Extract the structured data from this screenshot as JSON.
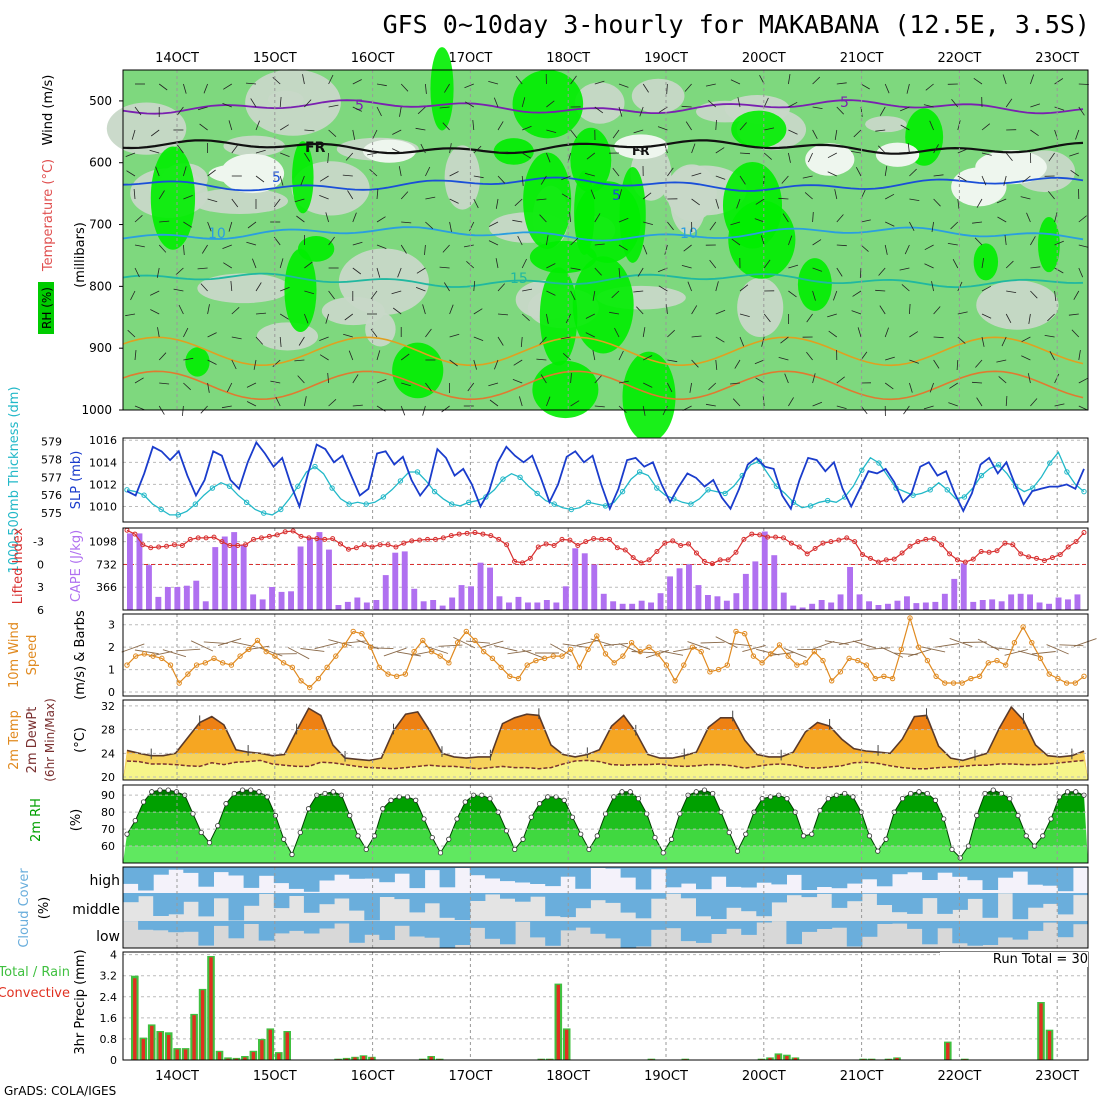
{
  "title": "GFS 0~10day 3-hourly for MAKABANA (12.5E, 3.5S)",
  "footer": "GrADS: COLA/IGES",
  "run_total": "Run Total = 30",
  "x_axis_labels": [
    "14OCT",
    "15OCT",
    "16OCT",
    "17OCT",
    "18OCT",
    "19OCT",
    "20OCT",
    "21OCT",
    "22OCT",
    "23OCT"
  ],
  "colors": {
    "rh_light": "#c8d8c8",
    "rh_mid": "#7ed87e",
    "rh_high": "#00ee00",
    "blue_slp": "#1a3ccc",
    "cyan_thk": "#22b8c8",
    "purple_cape": "#b070f0",
    "red_li": "#d83030",
    "orange_wind": "#e08a20",
    "temp_fill": "#f5a623",
    "dew_fill": "#f6f58a",
    "rh_green": "#00a000",
    "cloud_blue": "#6aaedc",
    "precip_green": "#40c040",
    "precip_red": "#e03020"
  },
  "chart_data": [
    {
      "panel": "upper-air",
      "type": "heatmap",
      "ylabel_parts": [
        "RH (%)",
        "Temperature (°C)",
        "Wind (m/s)"
      ],
      "ylabel_units": "(millibars)",
      "y_ticks": [
        500,
        600,
        700,
        800,
        900,
        1000
      ],
      "ylim": [
        450,
        1000
      ],
      "contour_labels": [
        "5",
        "FR",
        "5",
        "10",
        "15"
      ],
      "isotherms": [
        {
          "label": "-5",
          "pressure": 510
        },
        {
          "label": "FR",
          "pressure": 575
        },
        {
          "label": "5",
          "pressure": 635
        },
        {
          "label": "10",
          "pressure": 715
        },
        {
          "label": "15",
          "pressure": 790
        }
      ]
    },
    {
      "panel": "slp-thickness",
      "type": "line",
      "ylabel_left": "1000-500mb Thickness (dm)",
      "ylabel_right": "SLP (mb)",
      "left_ticks": [
        575,
        576,
        577,
        578,
        579
      ],
      "right_ticks": [
        1010,
        1012,
        1014,
        1016
      ],
      "ylim_slp": [
        1008.6,
        1016.2
      ],
      "slp": [
        1011.4,
        1011,
        1013,
        1015.4,
        1015,
        1014.2,
        1015,
        1012.8,
        1011,
        1012.4,
        1015,
        1014.6,
        1012.4,
        1011.6,
        1014,
        1015.8,
        1014.8,
        1013.6,
        1014.4,
        1012,
        1010,
        1013,
        1015.6,
        1015.2,
        1014,
        1014.6,
        1012.8,
        1011,
        1011.6,
        1014.8,
        1015,
        1013.8,
        1014.5,
        1012.4,
        1011,
        1012,
        1015.2,
        1014.4,
        1012.8,
        1013.4,
        1012,
        1010,
        1011.4,
        1014,
        1015.4,
        1014.6,
        1014,
        1014.6,
        1012.6,
        1010.4,
        1012,
        1014.5,
        1015,
        1014,
        1014.6,
        1012,
        1009.8,
        1011.6,
        1014.2,
        1014.4,
        1013.6,
        1014,
        1012,
        1010.4,
        1011.8,
        1013,
        1012.6,
        1011.8,
        1012.4,
        1010.8,
        1009.8,
        1011.6,
        1013.8,
        1014.4,
        1013.6,
        1013.4,
        1011,
        1009.8,
        1012.4,
        1014.4,
        1014.2,
        1013.2,
        1014,
        1011.6,
        1010,
        1011.6,
        1013.2,
        1013,
        1013.4,
        1012.2,
        1010.4,
        1011.2,
        1013.6,
        1014,
        1012.8,
        1013.2,
        1011.2,
        1009.6,
        1011.2,
        1013.8,
        1014.4,
        1013,
        1014,
        1012,
        1010.2,
        1011.4,
        1011.6,
        1011.8,
        1011.8,
        1012,
        1011.6,
        1013.4
      ],
      "thickness": [
        576.3,
        576.2,
        576,
        575.5,
        575.2,
        574.9,
        574.9,
        575.1,
        575.5,
        576,
        576.4,
        576.7,
        576.5,
        576,
        575.6,
        575.2,
        575,
        574.9,
        575.2,
        575.8,
        576.5,
        577.3,
        577.6,
        577.2,
        576.4,
        575.8,
        575.5,
        575.6,
        575.5,
        575.6,
        575.9,
        576.3,
        576.8,
        577.3,
        577.3,
        576.8,
        576.2,
        575.8,
        575.5,
        575.4,
        575.6,
        575.7,
        575.9,
        576.3,
        576.9,
        577.2,
        577,
        576.5,
        576.1,
        575.7,
        575.5,
        575.3,
        575.2,
        575.3,
        575.6,
        575.5,
        575.4,
        575.6,
        576.2,
        576.9,
        577.3,
        577.1,
        576.4,
        576,
        575.8,
        575.6,
        575.5,
        575.8,
        576.3,
        576.2,
        576.1,
        576.5,
        577.1,
        577.7,
        577.9,
        577.2,
        576.5,
        576.1,
        575.6,
        575.3,
        575.4,
        575.6,
        575.7,
        575.6,
        575.9,
        576.5,
        577.4,
        578.1,
        577.8,
        577.1,
        576.4,
        576.2,
        576,
        576.1,
        576.3,
        576.7,
        576.3,
        575.8,
        575.9,
        576.4,
        577.1,
        577.5,
        577.7,
        577.2,
        576.5,
        576.2,
        576.4,
        577,
        577.8,
        578.4,
        577.3,
        576.6,
        576.2
      ]
    },
    {
      "panel": "lifted-cape",
      "type": "bar",
      "ylabel_left": "Lifted Index",
      "ylabel_right": "CAPE (J/kg)",
      "left_ticks": [
        -3,
        0,
        3,
        6
      ],
      "right_ticks": [
        366,
        732,
        1098
      ],
      "ylim_cape": [
        0,
        1220
      ],
      "cape": [
        1230,
        1230,
        720,
        210,
        370,
        370,
        390,
        470,
        140,
        1010,
        1180,
        1250,
        1040,
        250,
        170,
        370,
        290,
        300,
        1020,
        1160,
        1250,
        970,
        80,
        130,
        200,
        120,
        160,
        560,
        920,
        940,
        340,
        140,
        160,
        70,
        200,
        400,
        380,
        760,
        680,
        220,
        120,
        210,
        120,
        120,
        160,
        120,
        380,
        990,
        910,
        730,
        260,
        140,
        100,
        100,
        150,
        120,
        270,
        540,
        670,
        730,
        400,
        240,
        220,
        150,
        270,
        580,
        780,
        1260,
        880,
        280,
        70,
        40,
        100,
        160,
        120,
        250,
        690,
        250,
        140,
        80,
        100,
        150,
        220,
        110,
        120,
        130,
        260,
        500,
        750,
        130,
        160,
        170,
        140,
        250,
        260,
        250,
        120,
        100,
        200,
        170,
        250
      ],
      "lifted_index": [
        -4.5,
        -4,
        -2.6,
        -2.2,
        -2.3,
        -2.4,
        -2.6,
        -2.5,
        -3.3,
        -3.5,
        -3.5,
        -3.6,
        -3,
        -2.5,
        -2.5,
        -2.6,
        -3.3,
        -3.5,
        -3.7,
        -3.9,
        -4.3,
        -4.4,
        -3.7,
        -3.5,
        -3.4,
        -3.3,
        -3.4,
        -2.7,
        -2,
        -2.2,
        -2.6,
        -2.3,
        -2.6,
        -2.6,
        -2.3,
        -2.8,
        -3.1,
        -3.2,
        -3.3,
        -3.3,
        -3.5,
        -3.8,
        -4,
        -4.1,
        -4.2,
        -4,
        -3.8,
        -3.3,
        -2.6,
        -0.4,
        -0.2,
        -0.8,
        -2.3,
        -2.7,
        -2.5,
        -3.3,
        -3.2,
        -2.5,
        -3,
        -3.4,
        -3.3,
        -3.3,
        -2.2,
        -1.9,
        -0.9,
        -0.2,
        -0.6,
        -1.7,
        -2.8,
        -3.1,
        -2.5,
        -2.7,
        -1.5,
        -0.4,
        -0.1,
        -0.6,
        -0.6,
        -1.6,
        -3.3,
        -4,
        -3.9,
        -3.6,
        -3.6,
        -3.5,
        -2.8,
        -2.3,
        -1.4,
        -2.1,
        -2.8,
        -3,
        -3.2,
        -3.5,
        -3,
        -1.3,
        -0.8,
        -0.3,
        -0.6,
        -0.7,
        -1.5,
        -2.4,
        -3,
        -3.3,
        -3.4,
        -2.6,
        -1.4,
        -0.6,
        -0.3,
        -0.7,
        -1.7,
        -1.6,
        -1.8,
        -2.8,
        -2.6,
        -1.4,
        -1,
        -0.8,
        -0.5,
        -0.9,
        -1.3,
        -2.3,
        -3,
        -4.2
      ]
    },
    {
      "panel": "wind-10m",
      "type": "line",
      "ylabel": "10m Wind Speed (m/s) & Barbs",
      "y_ticks": [
        0,
        1,
        2,
        3
      ],
      "ylim": [
        0,
        3.3
      ],
      "values": [
        1.2,
        1.6,
        1.7,
        1.6,
        1.5,
        1.2,
        0.4,
        0.8,
        1.2,
        1.3,
        1.5,
        1.3,
        1.2,
        1.6,
        1.9,
        2.3,
        1.8,
        1.6,
        1.3,
        1.1,
        0.5,
        0.2,
        0.6,
        1.1,
        1.6,
        2.1,
        2.7,
        2.6,
        2,
        1.1,
        0.8,
        0.7,
        0.8,
        1.8,
        2.3,
        1.8,
        1.6,
        1.3,
        2.2,
        2.7,
        2.3,
        1.8,
        1.5,
        1.1,
        0.7,
        0.6,
        1.2,
        1.4,
        1.5,
        1.6,
        1.6,
        1.9,
        1.1,
        1.9,
        2.5,
        1.7,
        1.3,
        1.6,
        2.2,
        1.8,
        2,
        1.7,
        1.2,
        0.5,
        1.2,
        2,
        1.8,
        0.9,
        1,
        1.2,
        2.7,
        2.6,
        1.6,
        1.3,
        1.7,
        2.1,
        1.6,
        1.2,
        1.3,
        1.8,
        1.4,
        0.5,
        0.9,
        1.5,
        1.4,
        1.2,
        0.6,
        0.7,
        0.6,
        1.9,
        3.3,
        2,
        1.4,
        0.7,
        0.4,
        0.4,
        0.4,
        0.6,
        0.7,
        1.3,
        1.4,
        1.2,
        2.2,
        2.9,
        2.2,
        1.5,
        0.8,
        0.6,
        0.4,
        0.4,
        0.7
      ]
    },
    {
      "panel": "temperature",
      "type": "area",
      "ylabel": "2m Temp 2m DewPt (6hr Min/Max) (°C)",
      "ylabel_parts": [
        "2m Temp",
        "2m DewPt",
        "(6hr Min/Max)",
        "(°C)"
      ],
      "y_ticks": [
        20,
        24,
        28,
        32
      ],
      "ylim": [
        19.5,
        33
      ],
      "temp": [
        24.5,
        24,
        23.6,
        23.6,
        24,
        26.6,
        29.2,
        30.2,
        28.8,
        24.6,
        24.2,
        24,
        23.6,
        23.8,
        27.8,
        31.6,
        30.4,
        25.4,
        23.2,
        23,
        22.8,
        23.2,
        27.8,
        30.6,
        31,
        27.8,
        24,
        23.4,
        23.2,
        23.4,
        23.4,
        29,
        30,
        30.6,
        30.4,
        25.4,
        23.8,
        23.4,
        23.8,
        24.6,
        28.6,
        30.4,
        27.6,
        23.8,
        23.2,
        23.2,
        23.6,
        24.2,
        28.4,
        30,
        30,
        26.2,
        23.8,
        23.4,
        23.4,
        24.2,
        27.6,
        29.2,
        28.6,
        26.4,
        24.8,
        24.4,
        24.2,
        24,
        26.4,
        30.2,
        30.4,
        25.2,
        23.2,
        22.8,
        23.4,
        24,
        28.2,
        31.8,
        29.6,
        25.4,
        23.6,
        23.4,
        23.6,
        24.4
      ],
      "dewpoint": [
        22.7,
        22.6,
        22.2,
        22.2,
        22.1,
        21.9,
        21.8,
        22.4,
        22.1,
        22.5,
        22.6,
        22.8,
        22.2,
        22,
        21.8,
        21.8,
        22.5,
        22.4,
        22.1,
        21.8,
        21.6,
        21.5,
        21.4,
        21.6,
        21.8,
        22,
        21.8,
        21.8,
        21.6,
        21.4,
        21.6,
        21.8,
        21.6,
        21.6,
        21.4,
        21.6,
        22.2,
        22.7,
        22.8,
        22.6,
        22.1,
        22,
        22.1,
        22.1,
        22.2,
        21.9,
        21.8,
        21.9,
        22.1,
        22.1,
        21.9,
        21.5,
        21.8,
        22.1,
        22.2,
        22,
        21.6,
        21.5,
        21.7,
        21.9,
        22.4,
        22.5,
        22.3,
        21.9,
        21.6,
        21.4,
        21.4,
        21.6,
        21.7,
        21.8,
        22,
        22,
        22.2,
        22.2,
        22.1,
        22.1,
        22.2,
        22.4,
        22.6,
        22.8
      ]
    },
    {
      "panel": "relative-humidity",
      "type": "area",
      "ylabel": "2m RH (%)",
      "y_ticks": [
        60,
        70,
        80,
        90
      ],
      "ylim": [
        50,
        96
      ],
      "values": [
        67,
        75,
        86,
        92,
        93,
        93,
        92,
        90,
        79,
        68,
        62,
        72,
        85,
        91,
        93,
        93,
        92,
        89,
        78,
        64,
        55,
        68,
        82,
        90,
        91,
        92,
        90,
        78,
        66,
        58,
        66,
        82,
        87,
        89,
        89,
        87,
        76,
        65,
        56,
        64,
        76,
        86,
        90,
        90,
        88,
        80,
        69,
        58,
        64,
        77,
        85,
        89,
        89,
        87,
        77,
        67,
        58,
        66,
        79,
        89,
        92,
        92,
        88,
        79,
        65,
        56,
        64,
        79,
        90,
        92,
        93,
        91,
        80,
        68,
        57,
        67,
        80,
        88,
        89,
        90,
        88,
        80,
        66,
        67,
        81,
        88,
        90,
        91,
        89,
        80,
        66,
        57,
        64,
        80,
        88,
        91,
        92,
        91,
        87,
        76,
        58,
        53,
        60,
        78,
        91,
        93,
        91,
        88,
        78,
        66,
        60,
        66,
        76,
        89,
        92,
        92,
        90
      ]
    },
    {
      "panel": "cloud-cover",
      "type": "bar",
      "ylabel": "Cloud Cover (%)",
      "levels": [
        "high",
        "middle",
        "low"
      ]
    },
    {
      "panel": "precipitation",
      "type": "bar",
      "ylabel": "3hr Precip (mm)",
      "legend_parts": [
        "Total / Rain",
        "Convective"
      ],
      "y_ticks": [
        0,
        0.8,
        1.6,
        2.4,
        3.2,
        4
      ],
      "ylim": [
        0,
        4.1
      ],
      "total": [
        3.2,
        0.85,
        1.35,
        1.1,
        1.05,
        0.45,
        0.45,
        1.75,
        2.7,
        3.95,
        0.35,
        0.1,
        0.08,
        0.15,
        0.35,
        0.8,
        1.2,
        0.3,
        1.1,
        0,
        0,
        0,
        0,
        0,
        0.05,
        0.08,
        0.12,
        0.18,
        0.12,
        0,
        0,
        0,
        0,
        0,
        0.05,
        0.15,
        0.05,
        0,
        0,
        0,
        0,
        0,
        0,
        0,
        0,
        0,
        0,
        0,
        0.05,
        0.05,
        2.9,
        1.2,
        0,
        0,
        0,
        0,
        0,
        0,
        0,
        0,
        0,
        0.05,
        0,
        0,
        0,
        0.05,
        0,
        0,
        0,
        0,
        0,
        0,
        0,
        0,
        0.05,
        0.1,
        0.25,
        0.2,
        0.1,
        0,
        0,
        0,
        0,
        0,
        0,
        0,
        0.05,
        0.05,
        0,
        0.05,
        0.1,
        0,
        0,
        0,
        0,
        0,
        0.7,
        0,
        0.05,
        0,
        0,
        0,
        0,
        0,
        0,
        0,
        0,
        2.2,
        1.15,
        0,
        0,
        0,
        0
      ],
      "convective": [
        3.1,
        0.8,
        1.3,
        1.05,
        0.95,
        0.4,
        0.4,
        1.7,
        2.65,
        3.9,
        0.3,
        0.05,
        0.05,
        0.1,
        0.3,
        0.75,
        1.15,
        0.25,
        1.05,
        0,
        0,
        0,
        0,
        0,
        0.03,
        0.05,
        0.1,
        0.15,
        0.1,
        0,
        0,
        0,
        0,
        0,
        0.03,
        0.12,
        0.03,
        0,
        0,
        0,
        0,
        0,
        0,
        0,
        0,
        0,
        0,
        0,
        0.03,
        0.03,
        2.85,
        1.15,
        0,
        0,
        0,
        0,
        0,
        0,
        0,
        0,
        0,
        0.03,
        0,
        0,
        0,
        0.03,
        0,
        0,
        0,
        0,
        0,
        0,
        0,
        0,
        0.03,
        0.08,
        0.2,
        0.15,
        0.08,
        0,
        0,
        0,
        0,
        0,
        0,
        0,
        0.03,
        0.03,
        0,
        0.03,
        0.08,
        0,
        0,
        0,
        0,
        0,
        0.65,
        0,
        0.03,
        0,
        0,
        0,
        0,
        0,
        0,
        0,
        0,
        2.15,
        1.1,
        0,
        0,
        0,
        0
      ]
    }
  ]
}
